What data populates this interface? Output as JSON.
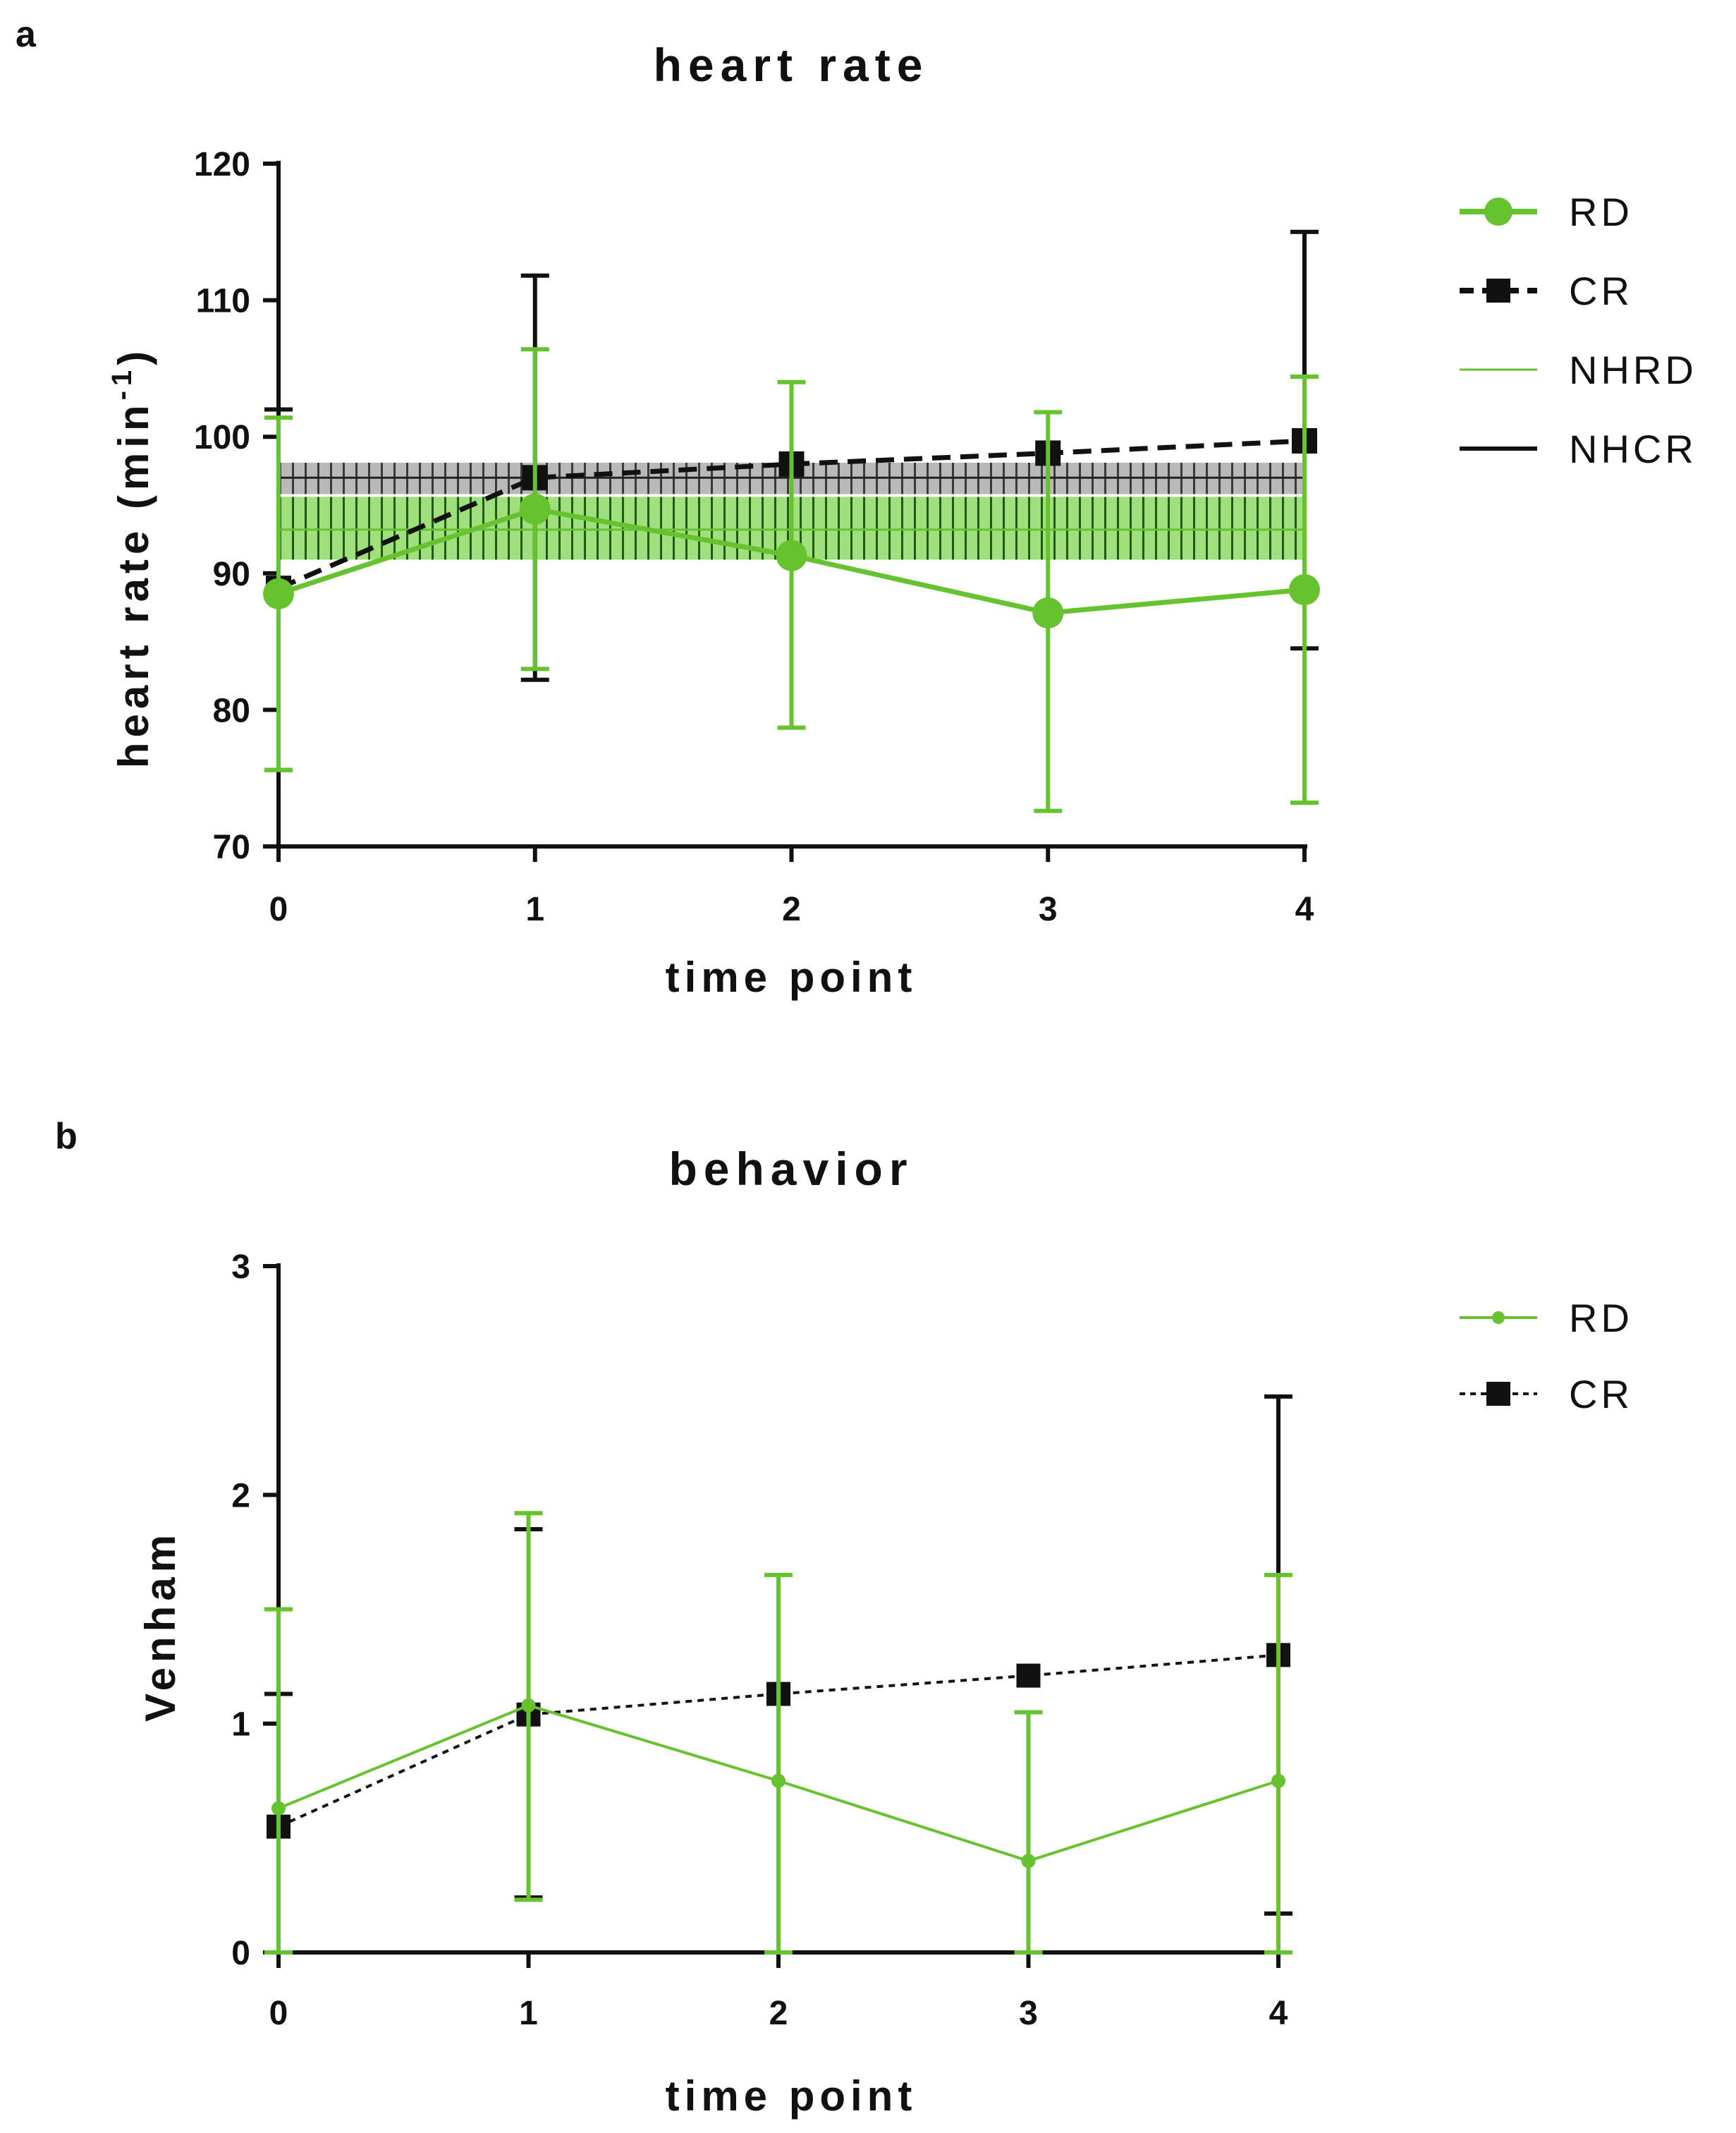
{
  "chart_data": [
    {
      "panel": "a",
      "type": "line",
      "title": "heart rate",
      "xlabel": "time point",
      "ylabel": "heart rate (min",
      "ylabel_sup": "-1",
      "ylabel_close": ")",
      "x": [
        0,
        1,
        2,
        3,
        4
      ],
      "xlim": [
        0,
        4
      ],
      "ylim": [
        70,
        120
      ],
      "yticks": [
        70,
        80,
        90,
        100,
        110,
        120
      ],
      "series": [
        {
          "name": "RD",
          "color": "#66c22e",
          "style": "solid",
          "marker": "circle",
          "values": [
            88.5,
            94.7,
            91.3,
            87.1,
            88.8
          ],
          "error": [
            [
              75.6,
              101.4
            ],
            [
              83.0,
              106.4
            ],
            [
              78.7,
              104.0
            ],
            [
              72.6,
              101.8
            ],
            [
              73.2,
              104.4
            ]
          ]
        },
        {
          "name": "CR",
          "color": "#000000",
          "style": "dashed",
          "marker": "square",
          "values": [
            88.9,
            97.0,
            98.0,
            98.8,
            99.7
          ],
          "error": [
            [
              75.6,
              102.0
            ],
            [
              82.2,
              111.8
            ],
            null,
            null,
            [
              84.5,
              115.0
            ]
          ]
        }
      ],
      "bands": [
        {
          "name": "NHRD",
          "color": "#66c22e",
          "low": 91.0,
          "high": 95.6,
          "mean": 93.2
        },
        {
          "name": "NHCR",
          "color": "#000000",
          "low": 95.8,
          "high": 98.1,
          "mean": 97.0
        }
      ],
      "legend": [
        "RD",
        "CR",
        "NHRD",
        "NHCR"
      ],
      "legend_position": "right"
    },
    {
      "panel": "b",
      "type": "line",
      "title": "behavior",
      "xlabel": "time point",
      "ylabel": "Venham",
      "x": [
        0,
        1,
        2,
        3,
        4
      ],
      "xlim": [
        0,
        4
      ],
      "ylim": [
        0,
        3
      ],
      "yticks": [
        0,
        1,
        2,
        3
      ],
      "series": [
        {
          "name": "RD",
          "color": "#66c22e",
          "style": "solid",
          "marker": "dot",
          "values": [
            0.63,
            1.08,
            0.75,
            0.4,
            0.75
          ],
          "error": [
            [
              0,
              1.5
            ],
            [
              0.23,
              1.92
            ],
            [
              0,
              1.65
            ],
            [
              0,
              1.05
            ],
            [
              0,
              1.65
            ]
          ]
        },
        {
          "name": "CR",
          "color": "#000000",
          "style": "dotted",
          "marker": "square",
          "values": [
            0.55,
            1.04,
            1.13,
            1.21,
            1.3
          ],
          "error": [
            [
              0,
              1.13
            ],
            [
              0.24,
              1.85
            ],
            null,
            null,
            [
              0.17,
              2.43
            ]
          ]
        }
      ],
      "legend": [
        "RD",
        "CR"
      ],
      "legend_position": "right"
    }
  ]
}
